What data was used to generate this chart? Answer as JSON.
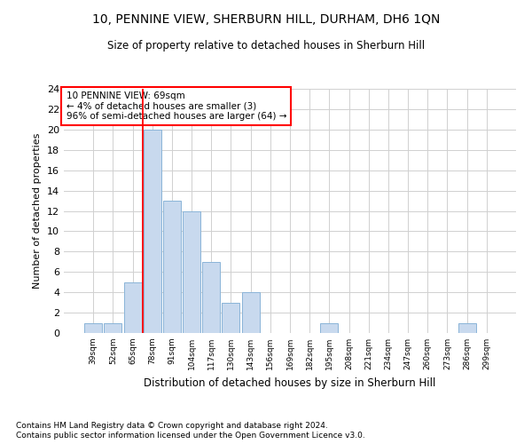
{
  "title1": "10, PENNINE VIEW, SHERBURN HILL, DURHAM, DH6 1QN",
  "title2": "Size of property relative to detached houses in Sherburn Hill",
  "xlabel": "Distribution of detached houses by size in Sherburn Hill",
  "ylabel": "Number of detached properties",
  "categories": [
    "39sqm",
    "52sqm",
    "65sqm",
    "78sqm",
    "91sqm",
    "104sqm",
    "117sqm",
    "130sqm",
    "143sqm",
    "156sqm",
    "169sqm",
    "182sqm",
    "195sqm",
    "208sqm",
    "221sqm",
    "234sqm",
    "247sqm",
    "260sqm",
    "273sqm",
    "286sqm",
    "299sqm"
  ],
  "values": [
    1,
    1,
    5,
    20,
    13,
    12,
    7,
    3,
    4,
    0,
    0,
    0,
    1,
    0,
    0,
    0,
    0,
    0,
    0,
    1,
    0
  ],
  "bar_color": "#c8d9ee",
  "bar_edge_color": "#8ab4d8",
  "grid_color": "#d0d0d0",
  "red_line_x": 2.5,
  "annotation_text": "10 PENNINE VIEW: 69sqm\n← 4% of detached houses are smaller (3)\n96% of semi-detached houses are larger (64) →",
  "annotation_box_color": "white",
  "annotation_box_edge": "red",
  "ylim": [
    0,
    24
  ],
  "yticks": [
    0,
    2,
    4,
    6,
    8,
    10,
    12,
    14,
    16,
    18,
    20,
    22,
    24
  ],
  "footnote1": "Contains HM Land Registry data © Crown copyright and database right 2024.",
  "footnote2": "Contains public sector information licensed under the Open Government Licence v3.0.",
  "bg_color": "#ffffff"
}
